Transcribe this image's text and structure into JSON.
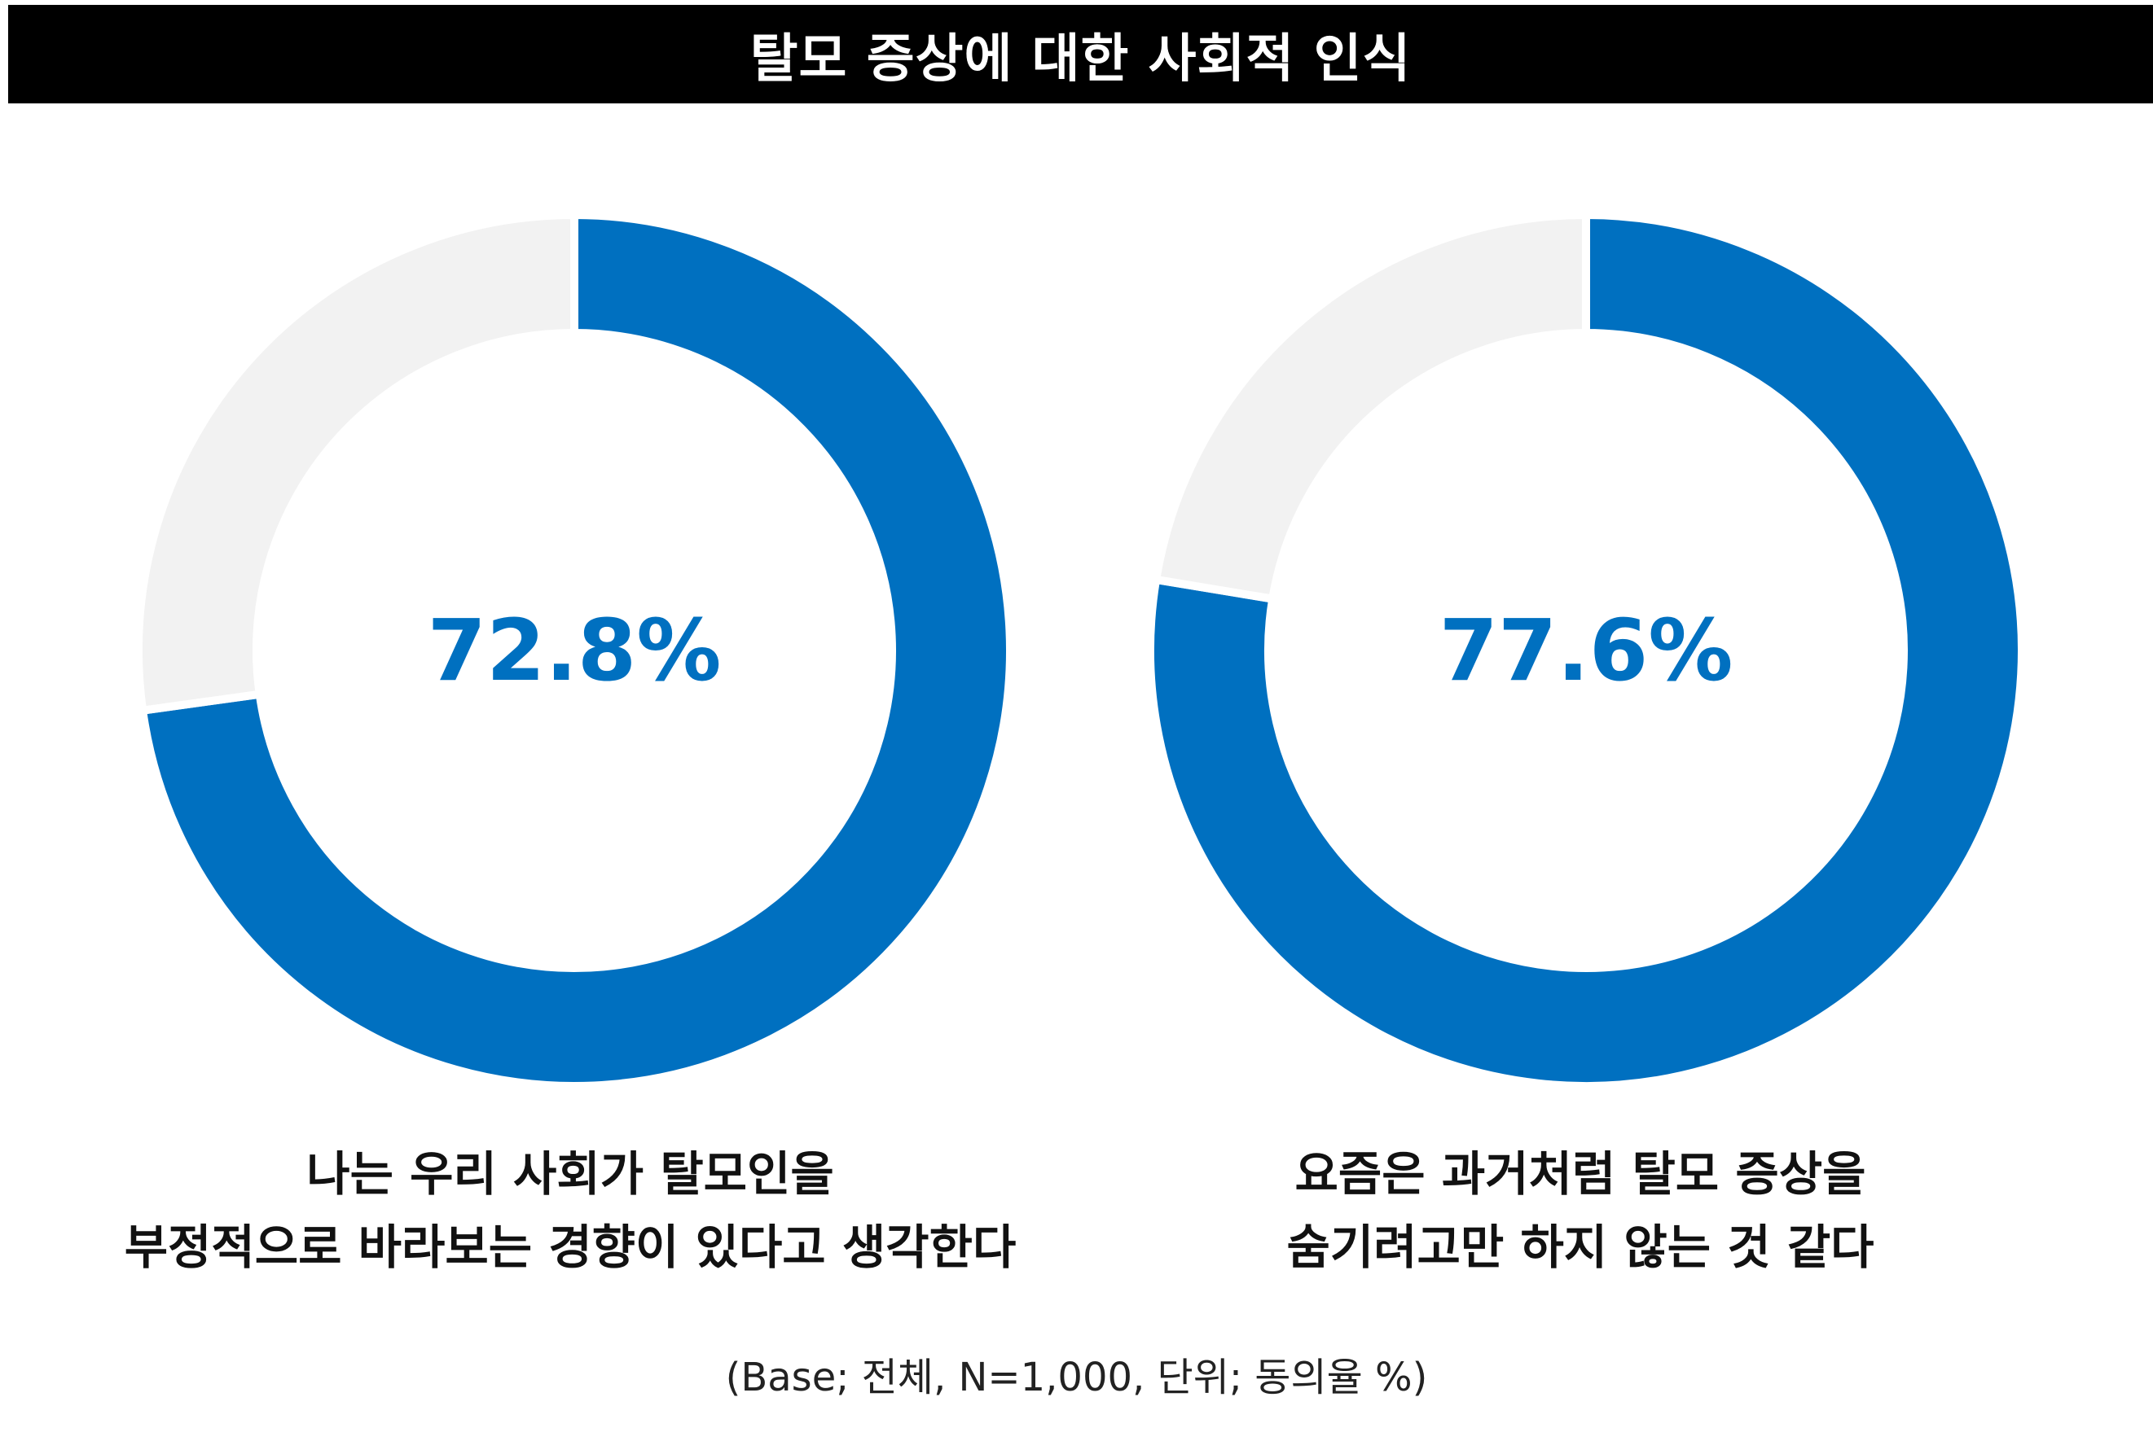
{
  "header": {
    "title": "탈모 증상에 대한 사회적 인식"
  },
  "colors": {
    "accent": "#0070C0",
    "remainder": "#F2F2F2",
    "title_bg": "#000000",
    "title_fg": "#FFFFFF"
  },
  "chart_data": [
    {
      "type": "pie",
      "value": 72.8,
      "value_label": "72.8%",
      "slices": [
        {
          "label": "동의",
          "value": 72.8,
          "color": "#0070C0"
        },
        {
          "label": "",
          "value": 27.2,
          "color": "#F2F2F2"
        }
      ],
      "caption_lines": [
        "나는 우리 사회가 탈모인을",
        "부정적으로 바라보는 경향이 있다고 생각한다"
      ]
    },
    {
      "type": "pie",
      "value": 77.6,
      "value_label": "77.6%",
      "slices": [
        {
          "label": "동의",
          "value": 77.6,
          "color": "#0070C0"
        },
        {
          "label": "",
          "value": 22.4,
          "color": "#F2F2F2"
        }
      ],
      "caption_lines": [
        "요즘은 과거처럼 탈모 증상을",
        "숨기려고만 하지 않는 것 같다"
      ]
    }
  ],
  "footer": {
    "note": "(Base; 전체, N=1,000, 단위; 동의율 %)"
  }
}
